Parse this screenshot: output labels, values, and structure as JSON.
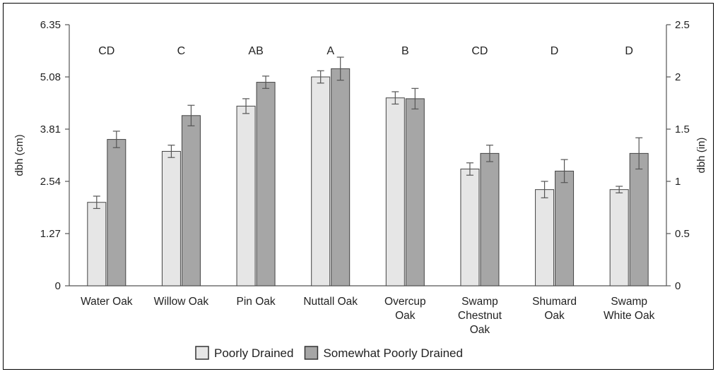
{
  "chart_data": {
    "type": "bar",
    "ylabel": "dbh (cm)",
    "ylabel_right": "dbh (in)",
    "ylim": [
      0,
      6.35
    ],
    "ylim_right": [
      0,
      2.5
    ],
    "yticks_left": [
      "0",
      "1.27",
      "2.54",
      "3.81",
      "5.08",
      "6.35"
    ],
    "yticks_right": [
      "0",
      "0.5",
      "1",
      "1.5",
      "2",
      "2.5"
    ],
    "categories": [
      [
        "Water Oak"
      ],
      [
        "Willow Oak"
      ],
      [
        "Pin Oak"
      ],
      [
        "Nuttall Oak"
      ],
      [
        "Overcup",
        "Oak"
      ],
      [
        "Swamp",
        "Chestnut",
        "Oak"
      ],
      [
        "Shumard",
        "Oak"
      ],
      [
        "Swamp",
        "White Oak"
      ]
    ],
    "letters": [
      "CD",
      "C",
      "AB",
      "A",
      "B",
      "CD",
      "D",
      "D"
    ],
    "series": [
      {
        "name": "Poorly Drained",
        "color": "#e6e6e6",
        "values": [
          2.03,
          3.27,
          4.37,
          5.08,
          4.57,
          2.84,
          2.34,
          2.34
        ],
        "errors": [
          0.15,
          0.15,
          0.18,
          0.15,
          0.15,
          0.15,
          0.2,
          0.08
        ]
      },
      {
        "name": "Somewhat Poorly Drained",
        "color": "#a6a6a6",
        "values": [
          3.56,
          4.14,
          4.95,
          5.28,
          4.55,
          3.22,
          2.79,
          3.22
        ],
        "errors": [
          0.2,
          0.25,
          0.15,
          0.28,
          0.25,
          0.2,
          0.28,
          0.38
        ]
      }
    ],
    "grid": false,
    "legend_position": "bottom"
  }
}
